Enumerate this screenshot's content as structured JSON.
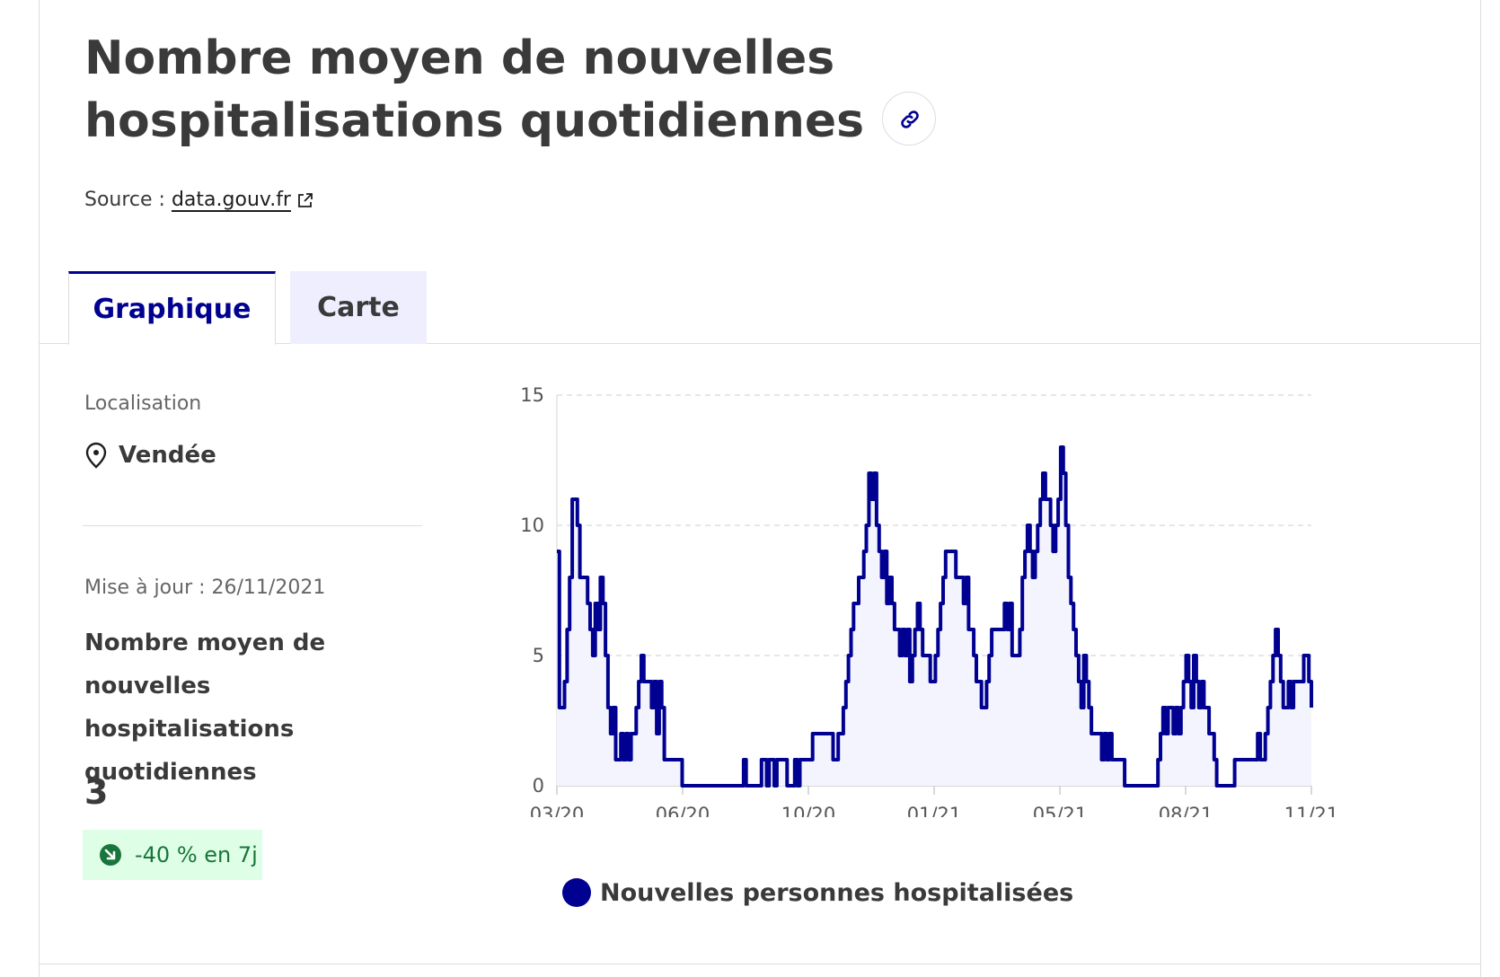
{
  "header": {
    "title": "Nombre moyen de nouvelles hospitalisations quotidiennes",
    "source_prefix": "Source :",
    "source_link": "data.gouv.fr"
  },
  "tabs": [
    {
      "label": "Graphique",
      "active": true
    },
    {
      "label": "Carte",
      "active": false
    }
  ],
  "sidebar": {
    "location_label": "Localisation",
    "location_value": "Vendée",
    "updated": "Mise à jour : 26/11/2021",
    "kpi_name": "Nombre moyen de nouvelles hospitalisations quotidiennes",
    "kpi_value": "3",
    "trend": "-40 % en 7j"
  },
  "colors": {
    "accent": "#000091",
    "trend_text": "#18753c",
    "trend_bg": "#dffee6",
    "area_fill": "#f4f4ff"
  },
  "chart_data": {
    "type": "area",
    "y_ticks": [
      0,
      5,
      10,
      15
    ],
    "ylim": [
      0,
      15
    ],
    "x_tick_labels": [
      "03/20",
      "06/20",
      "10/20",
      "01/21",
      "05/21",
      "08/21",
      "11/21"
    ],
    "grid": "horizontal dashed",
    "series": [
      {
        "name": "Nouvelles personnes hospitalisées",
        "values": [
          9,
          3,
          3,
          4,
          6,
          8,
          11,
          11,
          10,
          8,
          8,
          8,
          7,
          6,
          5,
          7,
          6,
          8,
          7,
          5,
          3,
          2,
          3,
          1,
          1,
          2,
          1,
          2,
          1,
          2,
          2,
          3,
          4,
          5,
          4,
          4,
          4,
          3,
          4,
          2,
          4,
          3,
          1,
          1,
          1,
          1,
          1,
          1,
          1,
          0,
          0,
          0,
          0,
          0,
          0,
          0,
          0,
          0,
          0,
          0,
          0,
          0,
          0,
          0,
          0,
          0,
          0,
          0,
          0,
          0,
          0,
          0,
          0,
          1,
          0,
          0,
          0,
          0,
          0,
          0,
          1,
          1,
          0,
          1,
          1,
          0,
          1,
          1,
          1,
          1,
          0,
          0,
          0,
          1,
          0,
          1,
          1,
          1,
          1,
          1,
          2,
          2,
          2,
          2,
          2,
          2,
          2,
          2,
          1,
          1,
          2,
          2,
          3,
          4,
          5,
          6,
          7,
          7,
          8,
          8,
          9,
          10,
          12,
          11,
          12,
          10,
          9,
          8,
          9,
          7,
          8,
          7,
          6,
          6,
          5,
          6,
          5,
          6,
          4,
          5,
          6,
          7,
          6,
          5,
          5,
          5,
          4,
          4,
          5,
          6,
          7,
          8,
          9,
          9,
          9,
          9,
          8,
          8,
          8,
          7,
          8,
          6,
          6,
          5,
          4,
          4,
          3,
          3,
          4,
          5,
          6,
          6,
          6,
          6,
          6,
          7,
          6,
          7,
          5,
          5,
          5,
          6,
          8,
          9,
          10,
          9,
          8,
          9,
          10,
          11,
          12,
          11,
          11,
          10,
          9,
          10,
          11,
          13,
          12,
          10,
          8,
          7,
          6,
          5,
          4,
          3,
          5,
          4,
          3,
          2,
          2,
          2,
          2,
          1,
          2,
          1,
          2,
          1,
          1,
          1,
          1,
          1,
          0,
          0,
          0,
          0,
          0,
          0,
          0,
          0,
          0,
          0,
          0,
          0,
          0,
          1,
          2,
          3,
          2,
          3,
          3,
          2,
          3,
          2,
          3,
          4,
          5,
          4,
          3,
          5,
          4,
          3,
          4,
          3,
          3,
          2,
          2,
          1,
          0,
          0,
          0,
          0,
          0,
          0,
          0,
          1,
          1,
          1,
          1,
          1,
          1,
          1,
          1,
          1,
          2,
          1,
          1,
          2,
          3,
          4,
          5,
          6,
          5,
          4,
          3,
          3,
          4,
          3,
          4,
          4,
          4,
          4,
          5,
          5,
          4,
          3
        ]
      }
    ],
    "legend": "Nouvelles personnes hospitalisées"
  }
}
